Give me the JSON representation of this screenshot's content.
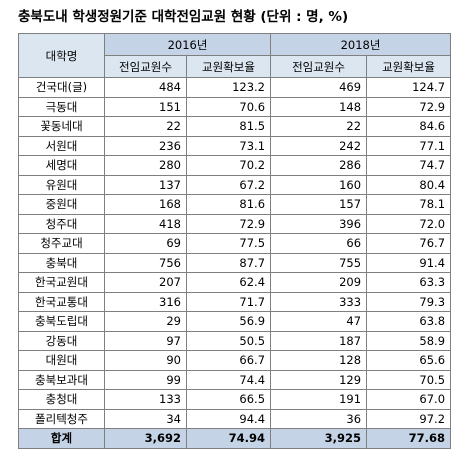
{
  "header": {
    "title": "충북도내 학생정원기준 대학전임교원 현황 (단위 : 명, %)"
  },
  "table": {
    "header": {
      "name": "대학명",
      "year1": "2016년",
      "year2": "2018년",
      "sub": [
        "전임교원수",
        "교원확보율",
        "전임교원수",
        "교원확보율"
      ]
    },
    "rows": [
      [
        "건국대(글)",
        "484",
        "123.2",
        "469",
        "124.7"
      ],
      [
        "극동대",
        "151",
        "70.6",
        "148",
        "72.9"
      ],
      [
        "꽃동네대",
        "22",
        "81.5",
        "22",
        "84.6"
      ],
      [
        "서원대",
        "236",
        "73.1",
        "242",
        "77.1"
      ],
      [
        "세명대",
        "280",
        "70.2",
        "286",
        "74.7"
      ],
      [
        "유원대",
        "137",
        "67.2",
        "160",
        "80.4"
      ],
      [
        "중원대",
        "168",
        "81.6",
        "157",
        "78.1"
      ],
      [
        "청주대",
        "418",
        "72.9",
        "396",
        "72.0"
      ],
      [
        "청주교대",
        "69",
        "77.5",
        "66",
        "76.7"
      ],
      [
        "충북대",
        "756",
        "87.7",
        "755",
        "91.4"
      ],
      [
        "한국교원대",
        "207",
        "62.4",
        "209",
        "63.3"
      ],
      [
        "한국교통대",
        "316",
        "71.7",
        "333",
        "79.3"
      ],
      [
        "충북도립대",
        "29",
        "56.9",
        "47",
        "63.8"
      ],
      [
        "강동대",
        "97",
        "50.5",
        "187",
        "58.9"
      ],
      [
        "대원대",
        "90",
        "66.7",
        "128",
        "65.6"
      ],
      [
        "충북보과대",
        "99",
        "74.4",
        "129",
        "70.5"
      ],
      [
        "충청대",
        "133",
        "66.5",
        "191",
        "67.0"
      ],
      [
        "폴리텍청주",
        "34",
        "94.4",
        "36",
        "97.2"
      ]
    ],
    "total": [
      "합계",
      "3,692",
      "74.94",
      "3,925",
      "77.68"
    ]
  }
}
